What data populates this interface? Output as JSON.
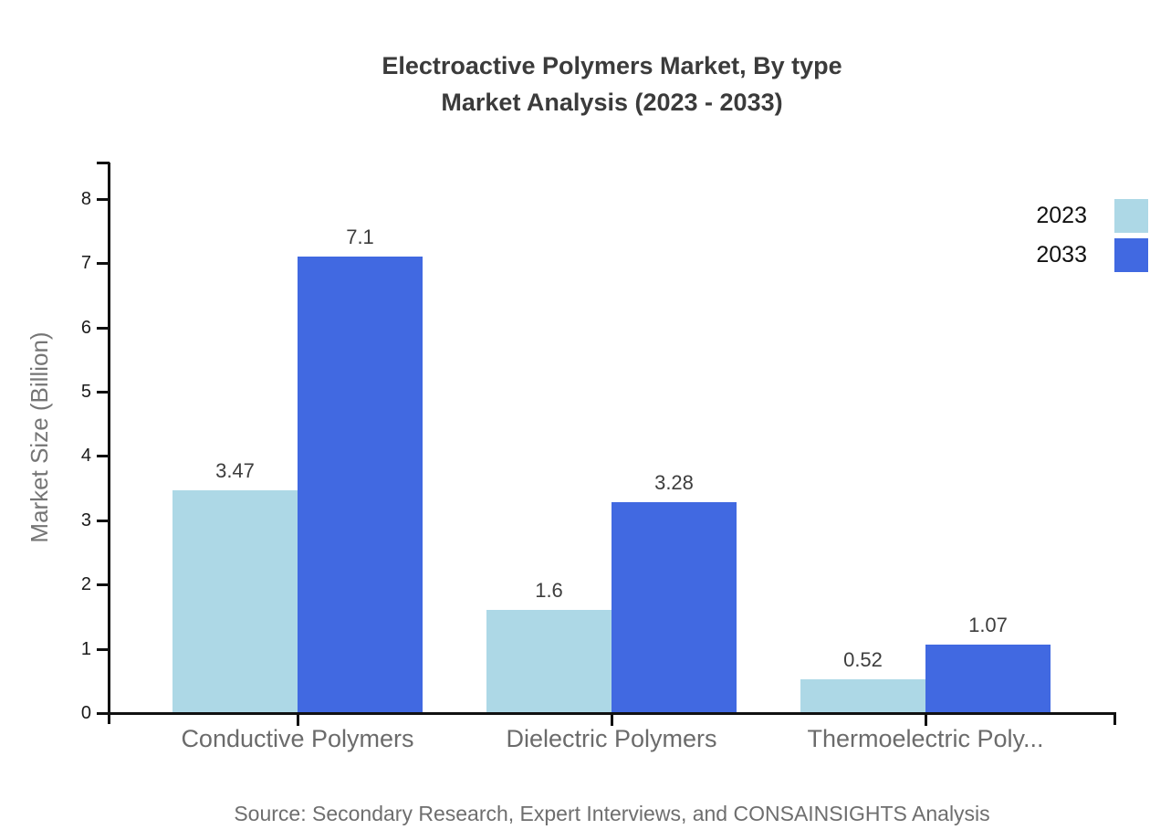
{
  "title": {
    "line1": "Electroactive Polymers Market, By type",
    "line2": "Market Analysis (2023 - 2033)"
  },
  "source_note": "Source: Secondary Research, Expert Interviews, and CONSAINSIGHTS Analysis",
  "chart_data": {
    "type": "bar",
    "title": "Electroactive Polymers Market, By type Market Analysis (2023 - 2033)",
    "categories": [
      "Conductive Polymers",
      "Dielectric Polymers",
      "Thermoelectric Poly..."
    ],
    "series": [
      {
        "name": "2023",
        "color": "#add8e6",
        "values": [
          3.47,
          1.6,
          0.52
        ],
        "value_labels": [
          "3.47",
          "1.6",
          "0.52"
        ]
      },
      {
        "name": "2033",
        "color": "#4169e1",
        "values": [
          7.1,
          3.28,
          1.07
        ],
        "value_labels": [
          "7.1",
          "3.28",
          "1.07"
        ]
      }
    ],
    "xlabel": "",
    "ylabel": "Market Size (Billion)",
    "ylim": [
      0,
      8.6
    ],
    "yticks": [
      0,
      1,
      2,
      3,
      4,
      5,
      6,
      7,
      8
    ],
    "grid": false,
    "legend_position": "top-right",
    "colors": {
      "axis": "#111111",
      "tick_label": "#1a1a1a",
      "value_label": "#3d3d3d",
      "category_label": "#6b6b6b",
      "axis_title": "#757575",
      "title": "#3b3b3b",
      "source": "#6e6e6e",
      "legend_label": "#111111"
    }
  }
}
